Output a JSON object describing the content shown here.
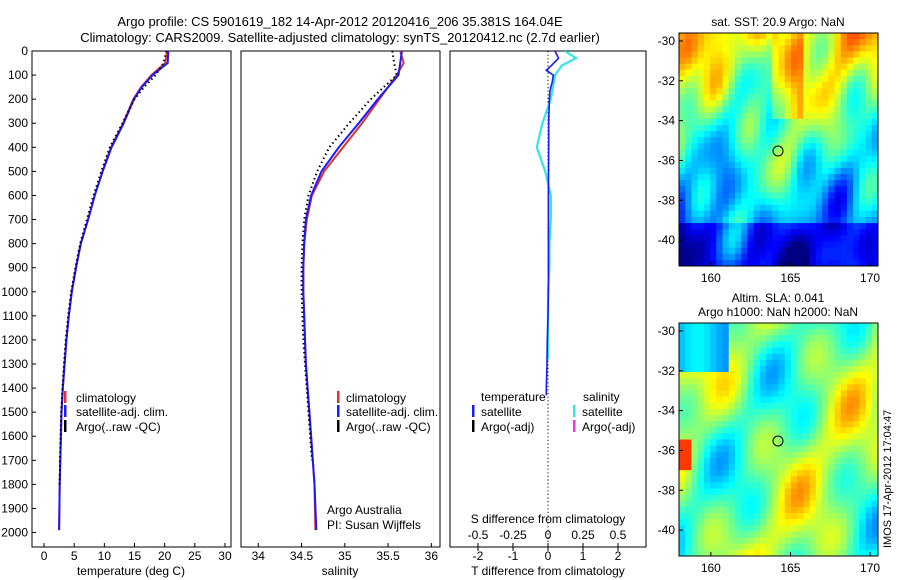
{
  "header": {
    "line1": "Argo profile: CS 5901619_182 14-Apr-2012 20120416_206 35.381S 164.04E",
    "line2": "Climatology: CARS2009. Satellite-adjusted climatology: synTS_20120412.nc (2.7d earlier)"
  },
  "colors": {
    "clim": "#e03030",
    "sat": "#1a1aff",
    "argo": "#000000",
    "sal_sat": "#33e6e6",
    "sal_argo": "#ee33ee"
  },
  "depth_ticks": [
    "0",
    "100",
    "200",
    "300",
    "400",
    "500",
    "600",
    "700",
    "800",
    "900",
    "1000",
    "1100",
    "1200",
    "1300",
    "1400",
    "1500",
    "1600",
    "1700",
    "1800",
    "1900",
    "2000"
  ],
  "chart_data": [
    {
      "type": "line",
      "name": "temperature",
      "xlabel": "temperature (deg C)",
      "xlim": [
        -2,
        31
      ],
      "ylim": [
        2060,
        0
      ],
      "xticks": [
        "0",
        "5",
        "10",
        "15",
        "20",
        "25",
        "30"
      ],
      "legend": [
        "climatology",
        "satellite-adj. clim.",
        "Argo(..raw -QC)"
      ],
      "series": [
        {
          "name": "climatology",
          "x": [
            20.4,
            20.1,
            17.8,
            16.1,
            14.8,
            13.1,
            11.1,
            9.7,
            8.4,
            7.3,
            6.1,
            5.3,
            4.6,
            4.1,
            3.7,
            3.4,
            3.1,
            2.9,
            2.8,
            2.7,
            2.6,
            2.55,
            2.5
          ],
          "y": [
            0,
            50,
            100,
            150,
            200,
            300,
            400,
            500,
            600,
            700,
            800,
            900,
            1000,
            1100,
            1200,
            1300,
            1400,
            1500,
            1600,
            1700,
            1800,
            1900,
            1990
          ]
        },
        {
          "name": "satellite-adj. clim.",
          "x": [
            20.6,
            20.5,
            18.0,
            16.2,
            14.9,
            13.2,
            11.2,
            9.7,
            8.4,
            7.3,
            6.1,
            5.3,
            4.6,
            4.1,
            3.7,
            3.4,
            3.1,
            2.9,
            2.8,
            2.7,
            2.6,
            2.55,
            2.5
          ],
          "y": [
            0,
            50,
            100,
            150,
            200,
            300,
            400,
            500,
            600,
            700,
            800,
            900,
            1000,
            1100,
            1200,
            1300,
            1400,
            1500,
            1600,
            1700,
            1800,
            1900,
            1990
          ]
        },
        {
          "name": "Argo(..raw -QC)",
          "x": [
            20.3,
            19.8,
            18.5,
            16.6,
            15.0,
            13.0,
            10.9,
            9.5,
            8.2,
            7.1,
            6.0,
            5.2,
            4.5,
            4.0,
            3.6,
            3.3,
            3.05,
            2.85,
            2.75,
            2.65,
            2.6
          ],
          "y": [
            0,
            50,
            100,
            150,
            200,
            300,
            400,
            500,
            600,
            700,
            800,
            900,
            1000,
            1100,
            1200,
            1300,
            1400,
            1500,
            1600,
            1700,
            1800
          ]
        }
      ]
    },
    {
      "type": "line",
      "name": "salinity",
      "xlabel": "salinity",
      "xlim": [
        33.8,
        36.1
      ],
      "ylim": [
        2060,
        0
      ],
      "xticks": [
        "34",
        "34.5",
        "35",
        "35.5",
        "36"
      ],
      "legend": [
        "climatology",
        "satellite-adj. clim.",
        "Argo(..raw -QC)"
      ],
      "annotation1": "Argo Australia",
      "annotation2": "PI: Susan Wijffels",
      "series": [
        {
          "name": "climatology",
          "x": [
            35.64,
            35.68,
            35.6,
            35.4,
            35.2,
            34.98,
            34.76,
            34.62,
            34.56,
            34.53,
            34.52,
            34.52,
            34.53,
            34.54,
            34.55,
            34.57,
            34.59,
            34.61,
            34.63,
            34.65,
            34.66
          ],
          "y": [
            0,
            50,
            100,
            200,
            300,
            400,
            500,
            600,
            700,
            800,
            900,
            1000,
            1100,
            1200,
            1300,
            1400,
            1500,
            1600,
            1700,
            1800,
            1990
          ]
        },
        {
          "name": "satellite-adj. clim.",
          "x": [
            35.66,
            35.64,
            35.62,
            35.38,
            35.16,
            34.93,
            34.73,
            34.61,
            34.55,
            34.53,
            34.52,
            34.52,
            34.53,
            34.54,
            34.55,
            34.57,
            34.59,
            34.61,
            34.63,
            34.65,
            34.67
          ],
          "y": [
            0,
            50,
            100,
            200,
            300,
            400,
            500,
            600,
            700,
            800,
            900,
            1000,
            1100,
            1200,
            1300,
            1400,
            1500,
            1600,
            1700,
            1800,
            1990
          ]
        },
        {
          "name": "Argo(..raw -QC)",
          "x": [
            35.55,
            35.57,
            35.6,
            35.3,
            35.05,
            34.82,
            34.68,
            34.58,
            34.53,
            34.51,
            34.5,
            34.5,
            34.51,
            34.52,
            34.54,
            34.56,
            34.58,
            34.6,
            34.62
          ],
          "y": [
            0,
            50,
            100,
            200,
            300,
            400,
            500,
            600,
            700,
            800,
            900,
            1000,
            1100,
            1200,
            1300,
            1400,
            1500,
            1600,
            1700
          ]
        }
      ]
    },
    {
      "type": "line",
      "name": "differences",
      "xlabel": "T difference from climatology",
      "xlabel_top": "S difference from climatology",
      "xlim": [
        -2.8,
        2.8
      ],
      "ylim": [
        2060,
        0
      ],
      "xticks_t": [
        "-2",
        "-1",
        "0",
        "1",
        "2"
      ],
      "xticks_s": [
        "-0.5",
        "-0.25",
        "0",
        "0.25",
        "0.5"
      ],
      "legend_t_title": "temperature",
      "legend_s_title": "salinity",
      "legend_t": [
        "satellite",
        "Argo(-adj)"
      ],
      "legend_s": [
        "satellite",
        "Argo(-adj)"
      ],
      "series": [
        {
          "name": "T satellite",
          "x": [
            0.2,
            0.3,
            0.1,
            -0.05,
            0.15,
            0.12,
            0.08,
            0.05,
            0.04,
            0.03,
            0.02,
            0.02,
            0.01,
            0.01,
            0.01,
            0.0,
            -0.02,
            -0.03,
            -0.05,
            -0.05
          ],
          "y": [
            0,
            30,
            60,
            80,
            100,
            130,
            150,
            170,
            200,
            250,
            300,
            400,
            600,
            800,
            1000,
            1100,
            1200,
            1300,
            1400,
            1430
          ]
        },
        {
          "name": "S satellite",
          "x": [
            0.12,
            0.2,
            0.1,
            0.05,
            0.02,
            -0.04,
            -0.08,
            -0.02,
            0.02,
            0.02,
            0.01,
            0.01,
            0.0,
            0.0,
            0.0
          ],
          "y": [
            0,
            30,
            60,
            100,
            200,
            300,
            400,
            500,
            600,
            700,
            800,
            900,
            1000,
            1100,
            1280
          ]
        }
      ]
    },
    {
      "type": "heatmap",
      "name": "sst_map",
      "title": "sat. SST: 20.9 Argo: NaN",
      "xlim": [
        158,
        170.5
      ],
      "ylim": [
        -41.3,
        -29.6
      ],
      "xticks": [
        "160",
        "165",
        "170"
      ],
      "yticks": [
        "-30",
        "-32",
        "-34",
        "-36",
        "-38",
        "-40"
      ],
      "marker": {
        "lon": 164.04,
        "lat": -35.38
      }
    },
    {
      "type": "heatmap",
      "name": "sla_map",
      "title1": "Altim. SLA: 0.041",
      "title2": "Argo h1000: NaN h2000: NaN",
      "xlim": [
        158,
        170.5
      ],
      "ylim": [
        -41.3,
        -29.6
      ],
      "xticks": [
        "160",
        "165",
        "170"
      ],
      "yticks": [
        "-30",
        "-32",
        "-34",
        "-36",
        "-38",
        "-40"
      ],
      "marker": {
        "lon": 164.04,
        "lat": -35.38
      },
      "side_label": "IMOS 17-Apr-2012 17:04:47"
    }
  ]
}
